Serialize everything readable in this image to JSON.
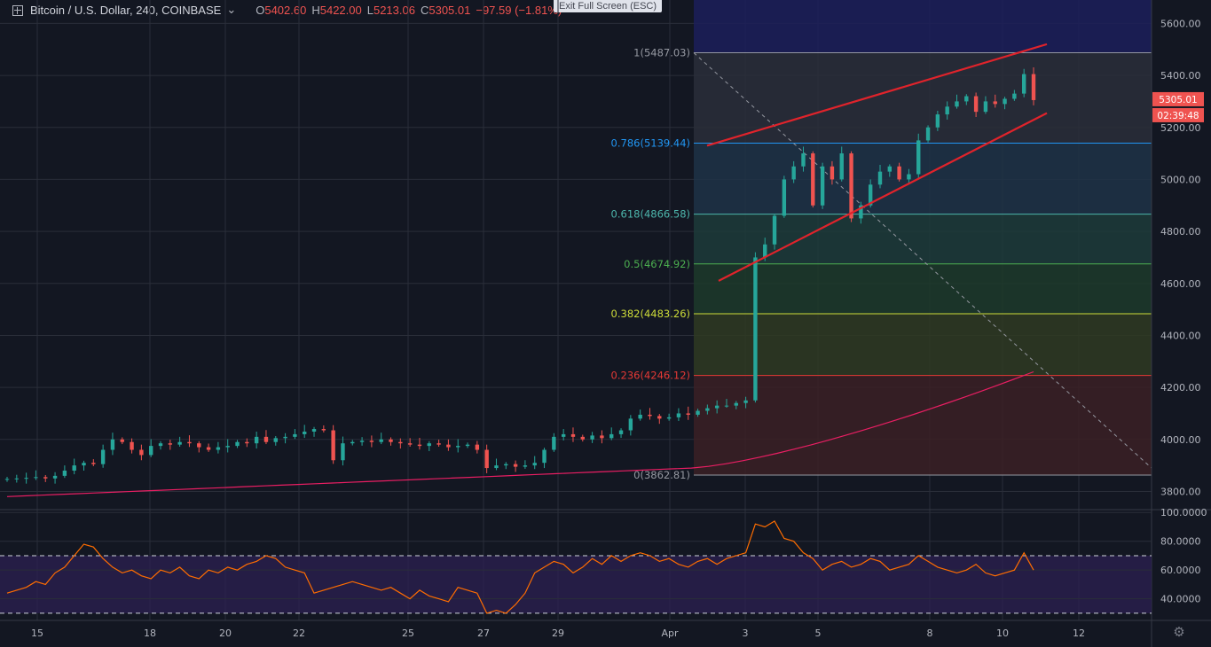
{
  "header": {
    "symbol": "Bitcoin / U.S. Dollar, 240, COINBASE",
    "dropdown_glyph": "⌄",
    "o_label": "O",
    "o_value": "5402.60",
    "h_label": "H",
    "h_value": "5422.00",
    "l_label": "L",
    "l_value": "5213.06",
    "c_label": "C",
    "c_value": "5305.01",
    "change": "−97.59 (−1.81%)"
  },
  "toast": "Exit Full Screen (ESC)",
  "icons": {
    "fullscreen": "plus-square-icon",
    "settings": "gear-icon"
  },
  "colors": {
    "bg": "#131722",
    "up": "#26a69a",
    "down": "#ef5350",
    "ma": "#e91e63",
    "rsi": "#ff6d00",
    "trend": "#e0232b"
  },
  "price_badge": {
    "price": "5305.01",
    "countdown": "02:39:48"
  },
  "chart_data": [
    {
      "type": "candlestick",
      "yaxis": {
        "ticks": [
          "3800.00",
          "4000.00",
          "4200.00",
          "4400.00",
          "4600.00",
          "4800.00",
          "5000.00",
          "5200.00",
          "5400.00",
          "5600.00"
        ],
        "ylim": [
          3730,
          5690
        ]
      },
      "xaxis": {
        "ticks": [
          "15",
          "18",
          "20",
          "22",
          "25",
          "27",
          "29",
          "Apr",
          "3",
          "5",
          "8",
          "10",
          "12"
        ]
      },
      "fib": [
        {
          "level": "1",
          "price": 5487.03,
          "label": "1(5487.03)",
          "color": "#9598a1",
          "fill": "#2a2e39"
        },
        {
          "level": "0.786",
          "price": 5139.44,
          "label": "0.786(5139.44)",
          "color": "#2196f3",
          "fill": "#1f3347"
        },
        {
          "level": "0.618",
          "price": 4866.58,
          "label": "0.618(4866.58)",
          "color": "#4db6ac",
          "fill": "#1d3b39"
        },
        {
          "level": "0.5",
          "price": 4674.92,
          "label": "0.5(4674.92)",
          "color": "#4caf50",
          "fill": "#1d3a2a"
        },
        {
          "level": "0.382",
          "price": 4483.26,
          "label": "0.382(4483.26)",
          "color": "#cddc39",
          "fill": "#2f3a22"
        },
        {
          "level": "0.236",
          "price": 4246.12,
          "label": "0.236(4246.12)",
          "color": "#e53935",
          "fill": "#3b2024"
        },
        {
          "level": "0",
          "price": 3862.81,
          "label": "0(3862.81)",
          "color": "#9598a1",
          "fill": ""
        }
      ],
      "series": [
        {
          "name": "",
          "kind": "ohlc",
          "close": [
            3848,
            3850,
            3852,
            3855,
            3850,
            3860,
            3880,
            3900,
            3910,
            3905,
            3960,
            4000,
            3990,
            3960,
            3940,
            3975,
            3985,
            3980,
            3990,
            3985,
            3970,
            3960,
            3970,
            3975,
            3990,
            3985,
            4010,
            3990,
            4005,
            4010,
            4020,
            4030,
            4040,
            4035,
            3920,
            3985,
            3990,
            3995,
            3990,
            4000,
            3990,
            3985,
            3980,
            3975,
            3985,
            3980,
            3970,
            3975,
            3980,
            3960,
            3890,
            3900,
            3905,
            3895,
            3900,
            3910,
            3960,
            4010,
            4020,
            4010,
            4000,
            4015,
            4005,
            4020,
            4035,
            4080,
            4095,
            4090,
            4080,
            4085,
            4100,
            4095,
            4110,
            4120,
            4130,
            4130,
            4140,
            4150,
            4700,
            4750,
            4860,
            5000,
            5050,
            5100,
            4900,
            5050,
            5000,
            5100,
            4850,
            4900,
            4980,
            5030,
            5050,
            5000,
            5020,
            5150,
            5200,
            5250,
            5280,
            5300,
            5320,
            5260,
            5300,
            5290,
            5310,
            5330,
            5405,
            5305
          ]
        }
      ]
    },
    {
      "type": "line",
      "yaxis": {
        "ticks": [
          "40.0000",
          "60.0000",
          "80.0000",
          "100.0000"
        ],
        "ylim": [
          25,
          102
        ]
      },
      "bands": [
        30,
        70
      ],
      "series": [
        {
          "name": "",
          "values": [
            44,
            46,
            48,
            52,
            50,
            58,
            62,
            70,
            78,
            76,
            68,
            62,
            58,
            60,
            56,
            54,
            60,
            58,
            62,
            56,
            54,
            60,
            58,
            62,
            60,
            64,
            66,
            70,
            68,
            62,
            60,
            58,
            44,
            46,
            48,
            50,
            52,
            50,
            48,
            46,
            48,
            44,
            40,
            46,
            42,
            40,
            38,
            48,
            46,
            44,
            30,
            32,
            30,
            36,
            44,
            58,
            62,
            66,
            64,
            58,
            62,
            68,
            64,
            70,
            66,
            70,
            72,
            70,
            66,
            68,
            64,
            62,
            66,
            68,
            64,
            68,
            70,
            72,
            92,
            90,
            94,
            82,
            80,
            72,
            68,
            60,
            64,
            66,
            62,
            64,
            68,
            66,
            60,
            62,
            64,
            70,
            66,
            62,
            60,
            58,
            60,
            64,
            58,
            56,
            58,
            60,
            72,
            60
          ]
        }
      ]
    }
  ]
}
